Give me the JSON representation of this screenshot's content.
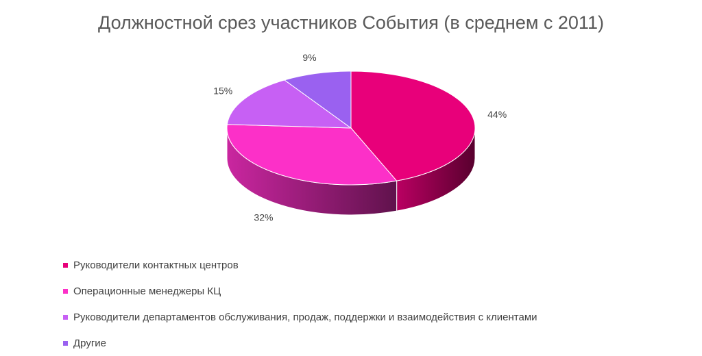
{
  "chart_data": {
    "type": "pie",
    "title": "Должностной срез участников События (в среднем с 2011)",
    "series": [
      {
        "label": "Руководители контактных центров",
        "value": 44,
        "display": "44%",
        "color": "#e8007a"
      },
      {
        "label": "Операционные менеджеры КЦ",
        "value": 32,
        "display": "32%",
        "color": "#fc30c8"
      },
      {
        "label": "Руководители департаментов обслуживания, продаж, поддержки и взаимодействия с клиентами",
        "value": 15,
        "display": "15%",
        "color": "#c760f4"
      },
      {
        "label": "Другие",
        "value": 9,
        "display": "9%",
        "color": "#9a61f0"
      }
    ],
    "legend_position": "bottom-left",
    "style": "3d-pie"
  }
}
